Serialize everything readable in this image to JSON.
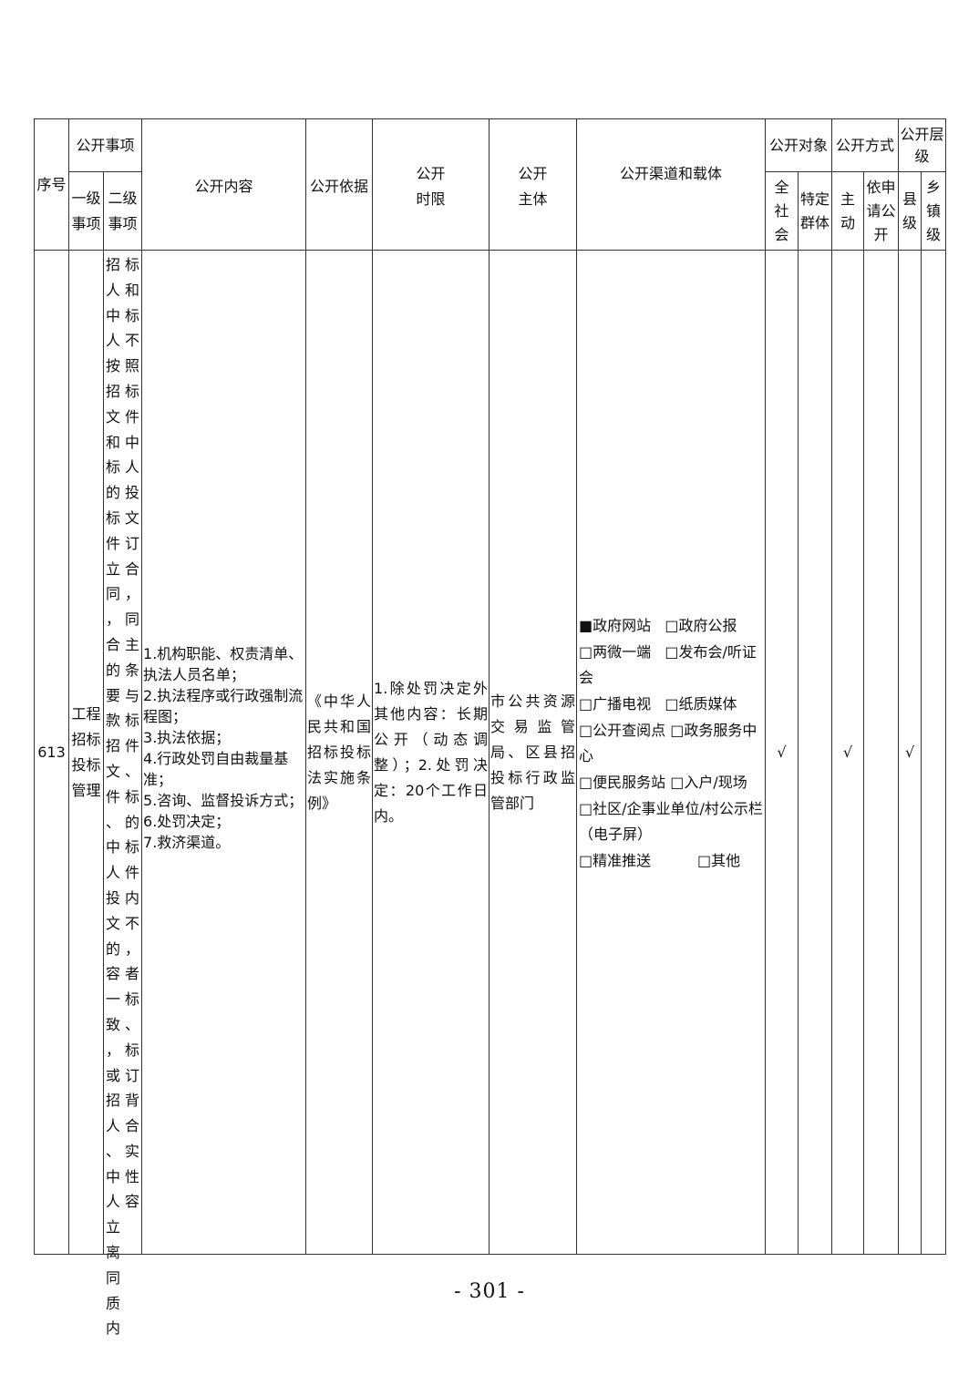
{
  "header": {
    "seq": "序号",
    "items": "公开事项",
    "level1": "一级事项",
    "level2": "二级事项",
    "content": "公开内容",
    "basis": "公开依据",
    "time_limit": "公开时限",
    "subject": "公开主体",
    "channels": "公开渠道和载体",
    "audience": "公开对象",
    "audience_all": "全社会",
    "audience_specific": "特定群体",
    "mode": "公开方式",
    "mode_active": "主动",
    "mode_request": "依申请公开",
    "level": "公开层级",
    "level_county": "县级",
    "level_town": "乡镇级"
  },
  "row": {
    "seq": "613",
    "level1": "工程招标投标管理",
    "level2_left": "招人中人按招文和标的标件立同，合的要款招文件、中人投文的容一致，或招人、中人立离同质内",
    "level2_right": "标和标不照标件中人投文订合，同主条与标件、标的标件内不，者标、标订背合实性容",
    "content": [
      "1.机构职能、权责清单、执法人员名单；",
      "2.执法程序或行政强制流程图；",
      "3.执法依据；",
      "4.行政处罚自由裁量基准；",
      "5.咨询、监督投诉方式；",
      "6.处罚决定；",
      "7.救济渠道。"
    ],
    "basis": "《中华人民共和国招标投标法实施条例》",
    "time_limit": "1.除处罚决定外其他内容：长期公开（动态调整）；2.处罚决定：20个工作日内。",
    "subject": "市公共资源交易监管局、区县招投标行政监管部门",
    "channels": {
      "line1a": "■政府网站",
      "line1b": "□政府公报",
      "line2a": "□两微一端",
      "line2b": "□发布会/听证会",
      "line3a": "□广播电视",
      "line3b": "□纸质媒体",
      "line4a": "□公开查阅点",
      "line4b": "□政务服务中心",
      "line5a": "□便民服务站",
      "line5b": "□入户/现场",
      "line6": "□社区/企事业单位/村公示栏（电子屏）",
      "line7a": "□精准推送",
      "line7b": "□其他"
    },
    "all_society": "√",
    "specific_group": "",
    "active": "√",
    "on_request": "",
    "county": "√",
    "town": ""
  },
  "page_number": "- 301 -"
}
